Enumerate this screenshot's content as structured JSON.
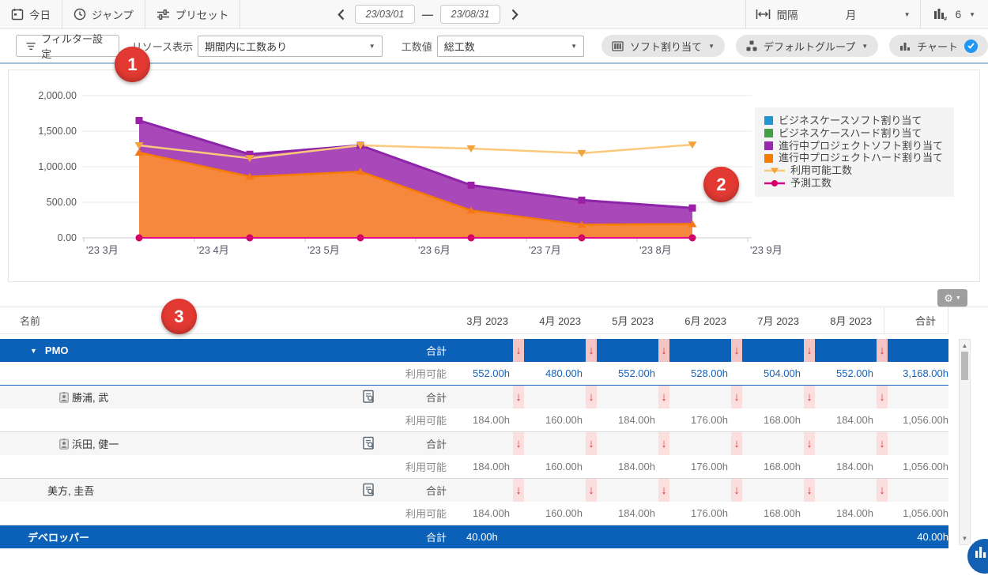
{
  "toolbar_top": {
    "today": "今日",
    "jump": "ジャンプ",
    "preset": "プリセット",
    "date_from": "23/03/01",
    "date_sep": "—",
    "date_to": "23/08/31",
    "interval_label": "間隔",
    "interval_value": "月",
    "chart_count": "6"
  },
  "toolbar_filter": {
    "filter_settings": "フィルター設定",
    "resource_display_label": "リソース表示",
    "resource_display_value": "期間内に工数あり",
    "effort_label": "工数値",
    "effort_value": "総工数",
    "soft_assignment": "ソフト割り当て",
    "default_group": "デフォルトグループ",
    "chart_toggle": "チャート"
  },
  "chart_data": {
    "type": "area",
    "stacked": true,
    "x_labels": [
      "'23 3月",
      "'23 4月",
      "'23 5月",
      "'23 6月",
      "'23 7月",
      "'23 8月",
      "'23 9月"
    ],
    "y_ticks": [
      {
        "v": 0,
        "label": "0.00"
      },
      {
        "v": 500,
        "label": "500.00"
      },
      {
        "v": 1000,
        "label": "1,000.00"
      },
      {
        "v": 1500,
        "label": "1,500.00"
      },
      {
        "v": 2000,
        "label": "2,000.00"
      }
    ],
    "ylim": [
      0,
      2000
    ],
    "legend_position": "right",
    "series": [
      {
        "name": "ビジネスケースソフト割り当て",
        "kind": "area",
        "color": "#2196d3",
        "values": [
          0,
          0,
          0,
          0,
          0,
          0
        ]
      },
      {
        "name": "ビジネスケースハード割り当て",
        "kind": "area",
        "color": "#43a047",
        "values": [
          0,
          0,
          0,
          0,
          0,
          0
        ]
      },
      {
        "name": "進行中プロジェクトソフト割り当て",
        "kind": "area",
        "color": "#9c27b0",
        "fill": "#a23bb4",
        "stroke": "#8e24aa",
        "marker": "#9c1fa8",
        "marker_shape": "square",
        "values": [
          450,
          315,
          370,
          355,
          345,
          225
        ]
      },
      {
        "name": "進行中プロジェクトハード割り当て",
        "kind": "area",
        "color": "#f57c00",
        "fill": "#f58233",
        "stroke": "#f57c00",
        "marker": "#f5761a",
        "marker_shape": "triangle-up",
        "values": [
          1200,
          860,
          930,
          385,
          185,
          195
        ]
      },
      {
        "name": "利用可能工数",
        "kind": "line",
        "color": "#f9c46b",
        "stroke": "#fbc97c",
        "marker": "#f2a33c",
        "marker_shape": "triangle-down",
        "values": [
          1300,
          1120,
          1300,
          1255,
          1190,
          1310
        ]
      },
      {
        "name": "予測工数",
        "kind": "line",
        "color": "#e0058a",
        "stroke": "#e0058a",
        "marker": "#d4006a",
        "marker_shape": "circle",
        "values": [
          0,
          0,
          0,
          0,
          0,
          0
        ]
      }
    ]
  },
  "table": {
    "name_header": "名前",
    "month_headers": [
      "3月 2023",
      "4月 2023",
      "5月 2023",
      "6月 2023",
      "7月 2023",
      "8月 2023"
    ],
    "total_header": "合計",
    "total_label": "合計",
    "available_label": "利用可能",
    "rows": [
      {
        "type": "group",
        "name": "PMO",
        "expanded": true,
        "arrows": true,
        "available": [
          "552.00h",
          "480.00h",
          "552.00h",
          "528.00h",
          "504.00h",
          "552.00h"
        ],
        "available_total": "3,168.00h"
      },
      {
        "type": "person",
        "name": "勝浦, 武",
        "badge": true,
        "arrows": true,
        "available": [
          "184.00h",
          "160.00h",
          "184.00h",
          "176.00h",
          "168.00h",
          "184.00h"
        ],
        "available_total": "1,056.00h"
      },
      {
        "type": "person",
        "name": "浜田, 健一",
        "badge": true,
        "arrows": true,
        "available": [
          "184.00h",
          "160.00h",
          "184.00h",
          "176.00h",
          "168.00h",
          "184.00h"
        ],
        "available_total": "1,056.00h"
      },
      {
        "type": "person",
        "name": "美方, 圭吾",
        "badge": false,
        "arrows": true,
        "available": [
          "184.00h",
          "160.00h",
          "184.00h",
          "176.00h",
          "168.00h",
          "184.00h"
        ],
        "available_total": "1,056.00h"
      },
      {
        "type": "group",
        "name": "デベロッパー",
        "expanded": false,
        "arrows": false,
        "month_values": [
          "40.00h",
          "",
          "",
          "",
          "",
          ""
        ],
        "total": "40.00h"
      }
    ]
  },
  "annotations": [
    {
      "label": "1"
    },
    {
      "label": "2"
    },
    {
      "label": "3"
    }
  ],
  "colors": {
    "group_row_blue": "#0b61b7",
    "value_blue": "#1464c0",
    "alert_red": "#e53935",
    "annotation_red": "#e23a32",
    "check_blue": "#2196f3"
  }
}
